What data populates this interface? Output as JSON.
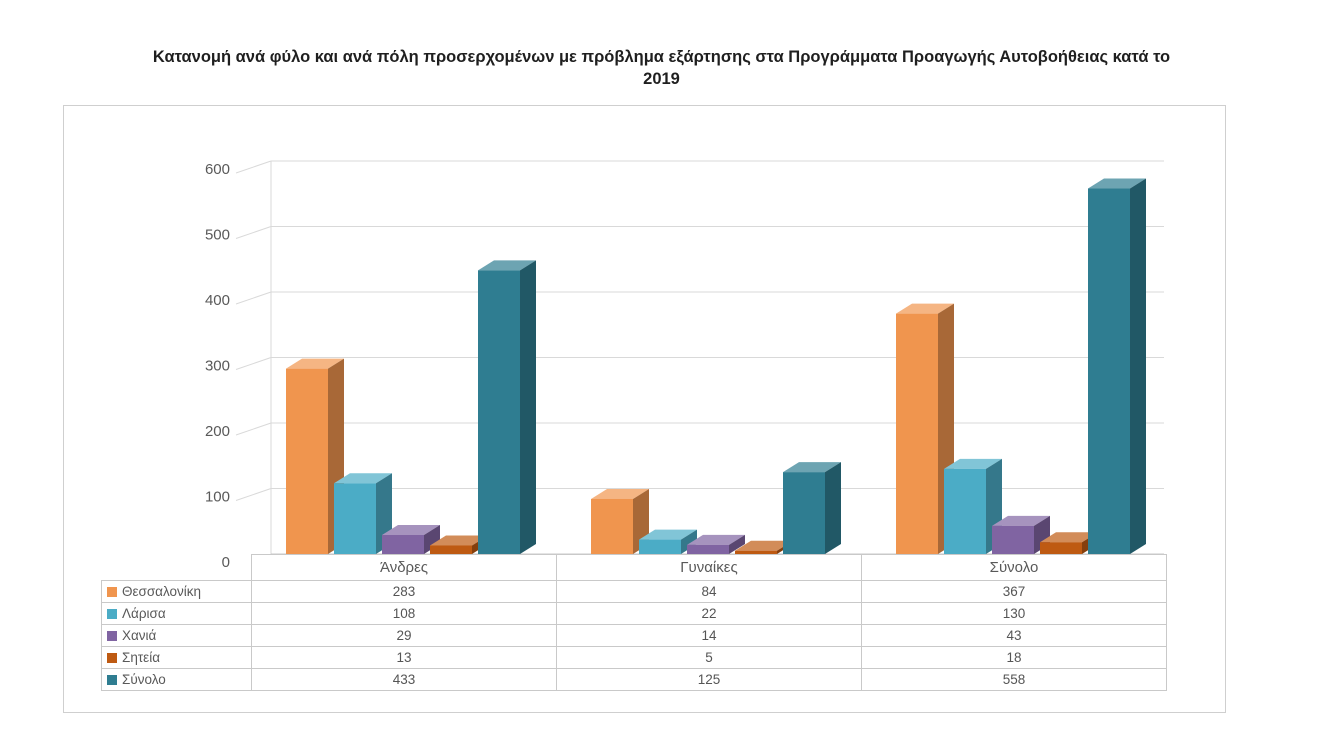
{
  "title": {
    "line1": "Κατανομή ανά φύλο και ανά πόλη προσερχομένων με πρόβλημα εξάρτησης στα Προγράμματα Προαγωγής Αυτοβοήθειας κατά το",
    "line2": "2019"
  },
  "chart_data": {
    "type": "bar",
    "style": "3d-clustered-column",
    "title": "Κατανομή ανά φύλο και ανά πόλη προσερχομένων με πρόβλημα εξάρτησης στα Προγράμματα Προαγωγής Αυτοβοήθειας κατά το 2019",
    "categories": [
      "Άνδρες",
      "Γυναίκες",
      "Σύνολο"
    ],
    "series": [
      {
        "name": "Θεσσαλονίκη",
        "color": "#F0954E",
        "values": [
          283,
          84,
          367
        ]
      },
      {
        "name": "Λάρισα",
        "color": "#4BACC6",
        "values": [
          108,
          22,
          130
        ]
      },
      {
        "name": "Χανιά",
        "color": "#8064A2",
        "values": [
          29,
          14,
          43
        ]
      },
      {
        "name": "Σητεία",
        "color": "#BE5A12",
        "values": [
          13,
          5,
          18
        ]
      },
      {
        "name": "Σύνολο",
        "color": "#2F7D91",
        "values": [
          433,
          125,
          558
        ]
      }
    ],
    "ylim": [
      0,
      600
    ],
    "yticks": [
      0,
      100,
      200,
      300,
      400,
      500,
      600
    ],
    "gridlines": true,
    "legend_position": "data-table-left",
    "grid_color": "#d9d9d9",
    "axis_text_color": "#595959"
  }
}
